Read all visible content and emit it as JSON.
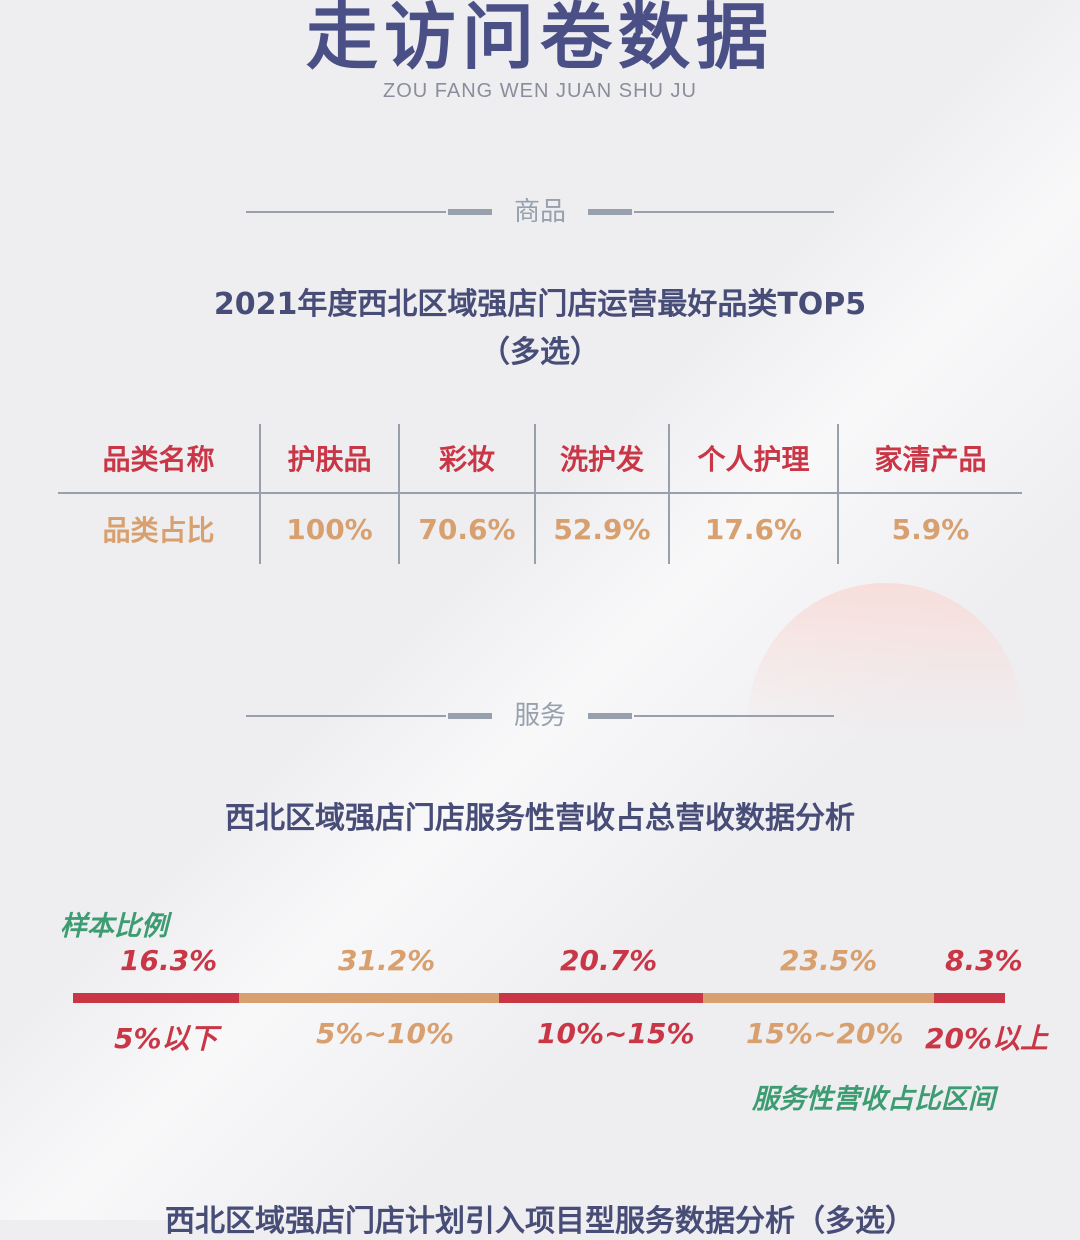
{
  "header": {
    "title": "走访问卷数据",
    "subtitle": "ZOU FANG WEN JUAN SHU JU"
  },
  "section_goods": {
    "label": "商品",
    "title_line1": "2021年度西北区域强店门店运营最好品类TOP5",
    "title_line2": "（多选）",
    "table": {
      "headers": [
        "品类名称",
        "护肤品",
        "彩妆",
        "洗护发",
        "个人护理",
        "家清产品"
      ],
      "values": [
        "品类占比",
        "100%",
        "70.6%",
        "52.9%",
        "17.6%",
        "5.9%"
      ]
    }
  },
  "section_service": {
    "label": "服务",
    "title": "西北区域强店门店服务性营收占总营收数据分析",
    "sample_label": "样本比例",
    "range_label": "服务性营收占比区间",
    "segments": [
      {
        "pct": "16.3%",
        "range": "5%以下",
        "value": 16.3,
        "color": "#c93747"
      },
      {
        "pct": "31.2%",
        "range": "5%~10%",
        "value": 31.2,
        "color": "#d8a06f"
      },
      {
        "pct": "20.7%",
        "range": "10%~15%",
        "value": 20.7,
        "color": "#c93747"
      },
      {
        "pct": "23.5%",
        "range": "15%~20%",
        "value": 23.5,
        "color": "#d8a06f"
      },
      {
        "pct": "8.3%",
        "range": "20%以上",
        "value": 8.3,
        "color": "#c93747"
      }
    ]
  },
  "section_project": {
    "title": "西北区域强店门店计划引入项目型服务数据分析（多选）"
  }
}
